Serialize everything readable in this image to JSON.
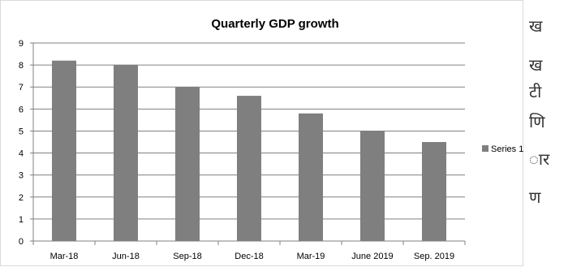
{
  "chart_data": {
    "type": "bar",
    "title": "Quarterly GDP growth",
    "categories": [
      "Mar-18",
      "Jun-18",
      "Sep-18",
      "Dec-18",
      "Mar-19",
      "June 2019",
      "Sep. 2019"
    ],
    "series": [
      {
        "name": "Series 1",
        "values": [
          8.2,
          8.0,
          7.0,
          6.6,
          5.8,
          5.0,
          4.5
        ]
      }
    ],
    "ylim": [
      0,
      9
    ],
    "yticks": [
      "0",
      "1",
      "2",
      "3",
      "4",
      "5",
      "6",
      "7",
      "8",
      "9"
    ],
    "xlabel": "",
    "ylabel": "",
    "grid": true,
    "legend": "right",
    "colors": {
      "bar": "#7f7f7f",
      "grid": "#808080",
      "axis": "#808080",
      "text": "#000000"
    }
  },
  "page_text": {
    "fragments": [
      "ख",
      "ख",
      "टी",
      "णि",
      "ार",
      "ण"
    ]
  }
}
